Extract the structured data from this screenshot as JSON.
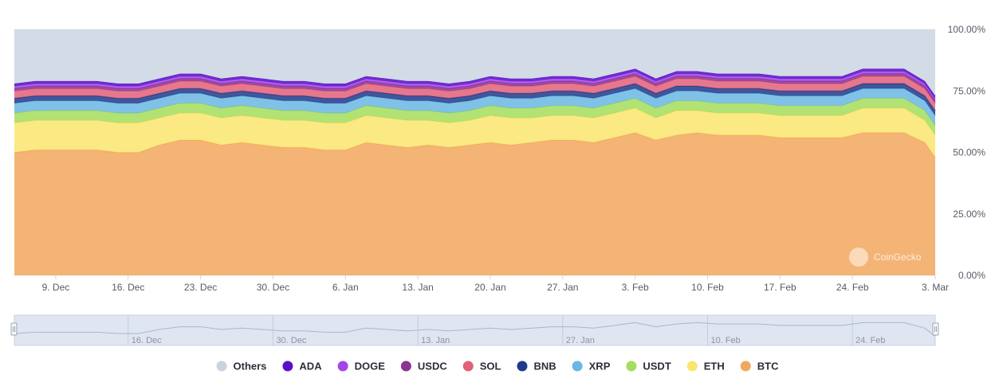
{
  "chart_data": {
    "type": "area",
    "stacking": "percent",
    "title": "",
    "xlabel": "",
    "ylabel": "",
    "ylim": [
      0,
      100
    ],
    "y_tick_labels": [
      "0.00%",
      "25.00%",
      "50.00%",
      "75.00%",
      "100.00%"
    ],
    "y_ticks": [
      0,
      25,
      50,
      75,
      100
    ],
    "x_range": [
      "2023-12-05",
      "2024-03-03"
    ],
    "x_tick_labels": [
      "9. Dec",
      "16. Dec",
      "23. Dec",
      "30. Dec",
      "6. Jan",
      "13. Jan",
      "20. Jan",
      "27. Jan",
      "3. Feb",
      "10. Feb",
      "17. Feb",
      "24. Feb",
      "3. Mar"
    ],
    "x_ticks": [
      "2023-12-09",
      "2023-12-16",
      "2023-12-23",
      "2023-12-30",
      "2024-01-06",
      "2024-01-13",
      "2024-01-20",
      "2024-01-27",
      "2024-02-03",
      "2024-02-10",
      "2024-02-17",
      "2024-02-24",
      "2024-03-03"
    ],
    "navigator_tick_labels": [
      "16. Dec",
      "30. Dec",
      "13. Jan",
      "27. Jan",
      "10. Feb",
      "24. Feb"
    ],
    "navigator_ticks": [
      "2023-12-16",
      "2023-12-30",
      "2024-01-13",
      "2024-01-27",
      "2024-02-10",
      "2024-02-24"
    ],
    "grid": true,
    "legend_placement": "bottom",
    "watermark": "CoinGecko",
    "x": [
      "2023-12-05",
      "2023-12-07",
      "2023-12-09",
      "2023-12-11",
      "2023-12-13",
      "2023-12-15",
      "2023-12-17",
      "2023-12-19",
      "2023-12-21",
      "2023-12-23",
      "2023-12-25",
      "2023-12-27",
      "2023-12-29",
      "2023-12-31",
      "2024-01-02",
      "2024-01-04",
      "2024-01-06",
      "2024-01-08",
      "2024-01-10",
      "2024-01-12",
      "2024-01-14",
      "2024-01-16",
      "2024-01-18",
      "2024-01-20",
      "2024-01-22",
      "2024-01-24",
      "2024-01-26",
      "2024-01-28",
      "2024-01-30",
      "2024-02-01",
      "2024-02-03",
      "2024-02-05",
      "2024-02-07",
      "2024-02-09",
      "2024-02-11",
      "2024-02-13",
      "2024-02-15",
      "2024-02-17",
      "2024-02-19",
      "2024-02-21",
      "2024-02-23",
      "2024-02-25",
      "2024-02-27",
      "2024-02-29",
      "2024-03-02",
      "2024-03-03"
    ],
    "series": [
      {
        "name": "BTC",
        "color": "#f2a75e",
        "values": [
          50,
          51,
          51,
          51,
          51,
          50,
          50,
          53,
          55,
          55,
          53,
          54,
          53,
          52,
          52,
          51,
          51,
          54,
          53,
          52,
          53,
          52,
          53,
          54,
          53,
          54,
          55,
          55,
          54,
          56,
          58,
          55,
          57,
          58,
          57,
          57,
          57,
          56,
          56,
          56,
          56,
          58,
          58,
          58,
          54,
          48
        ]
      },
      {
        "name": "ETH",
        "color": "#fae56e",
        "values": [
          12,
          12,
          12,
          12,
          12,
          12,
          12,
          11,
          11,
          11,
          11,
          11,
          11,
          11,
          11,
          11,
          11,
          11,
          11,
          11,
          10,
          10,
          10,
          11,
          11,
          10,
          10,
          10,
          10,
          10,
          10,
          9,
          10,
          9,
          9,
          9,
          9,
          9,
          9,
          9,
          9,
          10,
          10,
          10,
          9,
          9
        ]
      },
      {
        "name": "USDT",
        "color": "#a5dd5c",
        "values": [
          4,
          4,
          4,
          4,
          4,
          4,
          4,
          4,
          4,
          4,
          4,
          4,
          4,
          4,
          4,
          4,
          4,
          4,
          4,
          4,
          4,
          4,
          4,
          4,
          4,
          4,
          4,
          4,
          4,
          4,
          4,
          4,
          4,
          4,
          4,
          4,
          4,
          4,
          4,
          4,
          4,
          4,
          4,
          4,
          4,
          4
        ]
      },
      {
        "name": "XRP",
        "color": "#6ab7e3",
        "values": [
          4,
          4,
          4,
          4,
          4,
          4,
          4,
          4,
          4,
          4,
          4,
          4,
          4,
          4,
          4,
          4,
          4,
          4,
          4,
          4,
          4,
          4,
          4,
          4,
          4,
          4,
          4,
          4,
          4,
          4,
          4,
          4,
          4,
          4,
          4,
          4,
          4,
          4,
          4,
          4,
          4,
          4,
          4,
          4,
          4,
          4
        ]
      },
      {
        "name": "BNB",
        "color": "#1f3a8a",
        "values": [
          2,
          2,
          2,
          2,
          2,
          2,
          2,
          2,
          2,
          2,
          2,
          2,
          2,
          2,
          2,
          2,
          2,
          2,
          2,
          2,
          2,
          2,
          2,
          2,
          2,
          2,
          2,
          2,
          2,
          2,
          2,
          2,
          2,
          2,
          2,
          2,
          2,
          2,
          2,
          2,
          2,
          2,
          2,
          2,
          2,
          2
        ]
      },
      {
        "name": "SOL",
        "color": "#e2607a",
        "values": [
          3,
          3,
          3,
          3,
          3,
          3,
          3,
          3,
          3,
          3,
          3,
          3,
          3,
          3,
          3,
          3,
          3,
          3,
          3,
          3,
          3,
          3,
          3,
          3,
          3,
          3,
          3,
          3,
          3,
          3,
          3,
          3,
          3,
          3,
          3,
          3,
          3,
          3,
          3,
          3,
          3,
          3,
          3,
          3,
          3,
          3
        ]
      },
      {
        "name": "USDC",
        "color": "#8a3591",
        "values": [
          1,
          1,
          1,
          1,
          1,
          1,
          1,
          1,
          1,
          1,
          1,
          1,
          1,
          1,
          1,
          1,
          1,
          1,
          1,
          1,
          1,
          1,
          1,
          1,
          1,
          1,
          1,
          1,
          1,
          1,
          1,
          1,
          1,
          1,
          1,
          1,
          1,
          1,
          1,
          1,
          1,
          1,
          1,
          1,
          1,
          1
        ]
      },
      {
        "name": "DOGE",
        "color": "#a147e8",
        "values": [
          1,
          1,
          1,
          1,
          1,
          1,
          1,
          1,
          1,
          1,
          1,
          1,
          1,
          1,
          1,
          1,
          1,
          1,
          1,
          1,
          1,
          1,
          1,
          1,
          1,
          1,
          1,
          1,
          1,
          1,
          1,
          1,
          1,
          1,
          1,
          1,
          1,
          1,
          1,
          1,
          1,
          1,
          1,
          1,
          1,
          1
        ]
      },
      {
        "name": "ADA",
        "color": "#5b10c8",
        "values": [
          1,
          1,
          1,
          1,
          1,
          1,
          1,
          1,
          1,
          1,
          1,
          1,
          1,
          1,
          1,
          1,
          1,
          1,
          1,
          1,
          1,
          1,
          1,
          1,
          1,
          1,
          1,
          1,
          1,
          1,
          1,
          1,
          1,
          1,
          1,
          1,
          1,
          1,
          1,
          1,
          1,
          1,
          1,
          1,
          1,
          1
        ]
      },
      {
        "name": "Others",
        "color": "#d2dbe6",
        "values": [
          22,
          21,
          21,
          21,
          21,
          22,
          22,
          20,
          18,
          18,
          20,
          19,
          20,
          21,
          21,
          22,
          22,
          19,
          20,
          21,
          21,
          22,
          21,
          20,
          21,
          21,
          20,
          20,
          21,
          19,
          17,
          20,
          18,
          18,
          19,
          19,
          19,
          20,
          20,
          20,
          20,
          18,
          18,
          18,
          22,
          28
        ]
      }
    ]
  },
  "legend_order": [
    "Others",
    "ADA",
    "DOGE",
    "USDC",
    "SOL",
    "BNB",
    "XRP",
    "USDT",
    "ETH",
    "BTC"
  ]
}
